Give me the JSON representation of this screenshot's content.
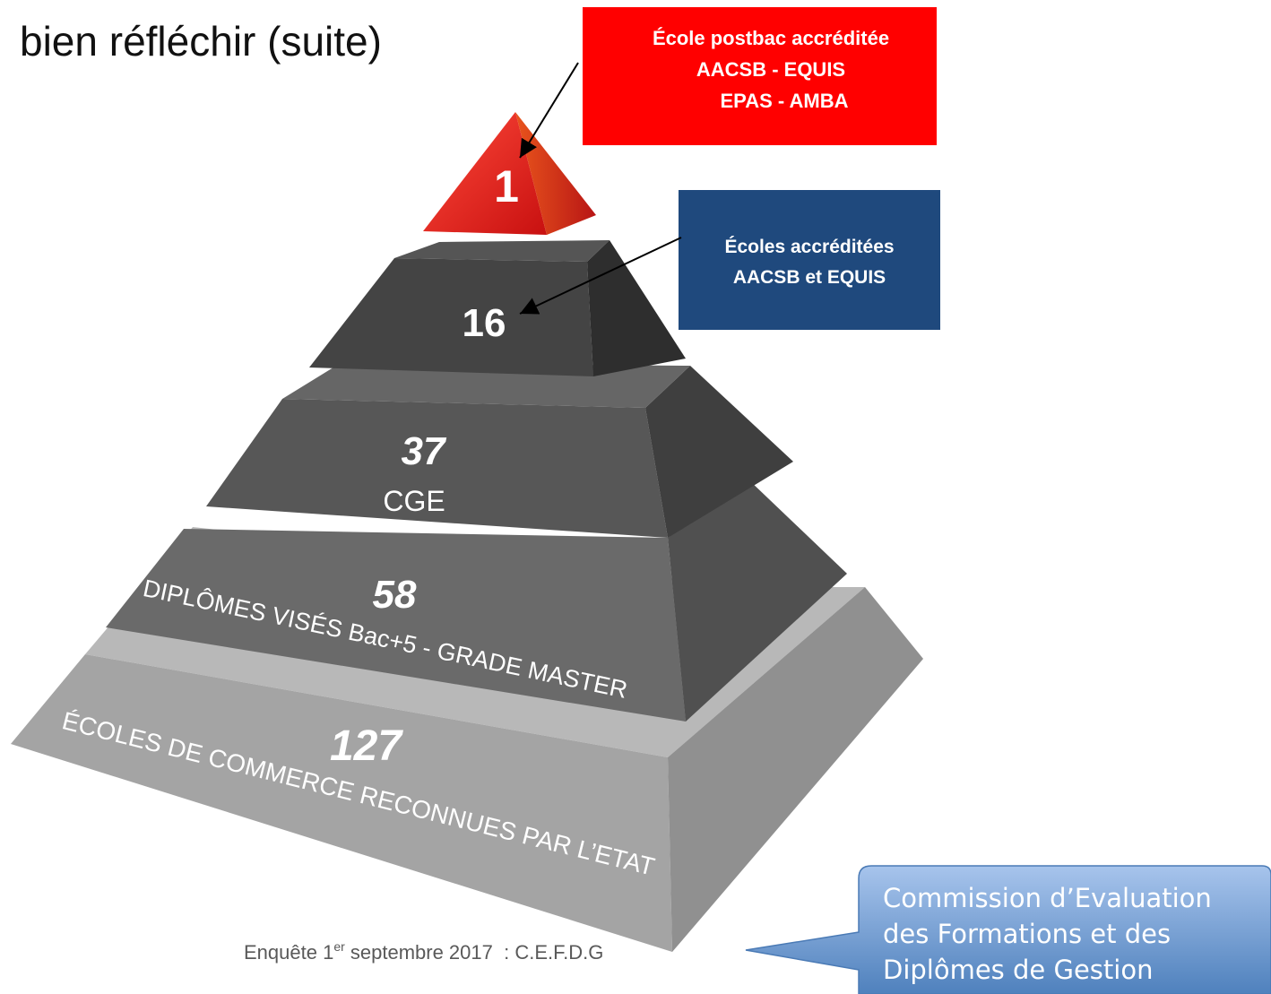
{
  "title": "bien réfléchir (suite)",
  "levels": [
    {
      "value": 1
    },
    {
      "value": 16
    },
    {
      "value": 37,
      "label": "CGE"
    },
    {
      "value": 58,
      "label": "DIPLÔMES VISÉS Bac+5 - GRADE MASTER"
    },
    {
      "value": 127,
      "label": "ÉCOLES DE COMMERCE RECONNUES PAR L’ETAT"
    }
  ],
  "callouts": [
    {
      "lines": [
        "École postbac accréditée",
        "AACSB - EQUIS",
        "EPAS - AMBA"
      ]
    },
    {
      "lines": [
        "Écoles accréditées",
        "AACSB et EQUIS"
      ]
    }
  ],
  "footer": {
    "text": "Enquête 1",
    "superscript": "er",
    "rest": " septembre 2017  : C.E.F.D.G"
  },
  "bubble": {
    "lines": [
      "Commission d’Evaluation",
      "des Formations et des",
      "Diplômes de Gestion"
    ]
  }
}
